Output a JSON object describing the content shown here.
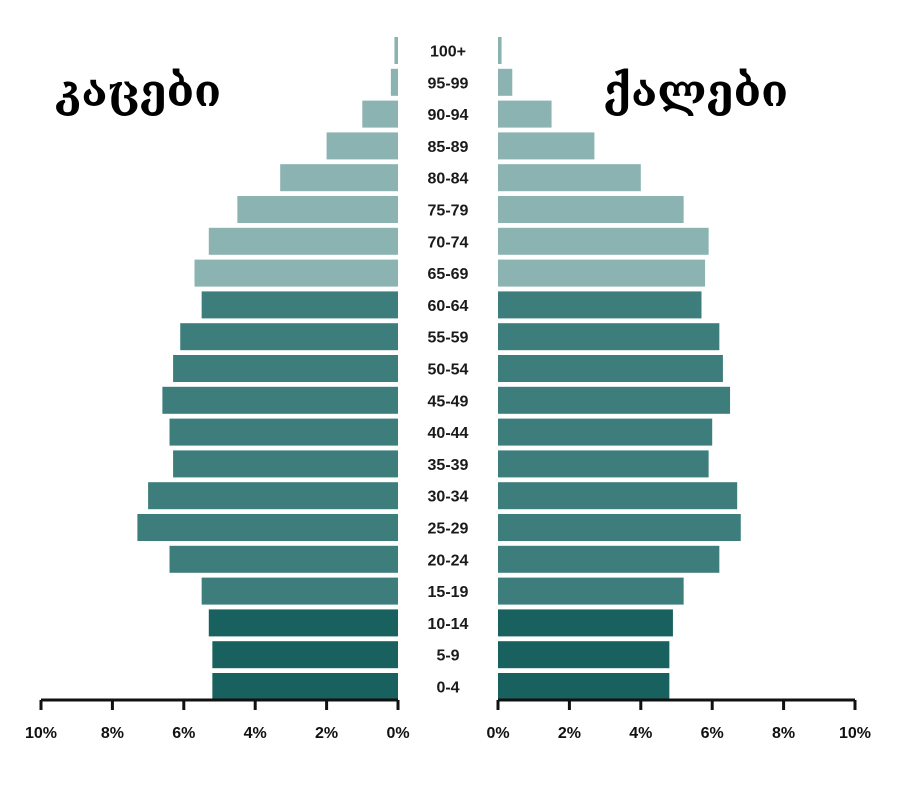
{
  "chart_data": {
    "type": "bar",
    "subtype": "population-pyramid",
    "left_title": "კაცები",
    "right_title": "ქალები",
    "categories": [
      "100+",
      "95-99",
      "90-94",
      "85-89",
      "80-84",
      "75-79",
      "70-74",
      "65-69",
      "60-64",
      "55-59",
      "50-54",
      "45-49",
      "40-44",
      "35-39",
      "30-34",
      "25-29",
      "20-24",
      "15-19",
      "10-14",
      "5-9",
      "0-4"
    ],
    "series": [
      {
        "name": "კაცები",
        "side": "left",
        "values": [
          0.1,
          0.2,
          1.0,
          2.0,
          3.3,
          4.5,
          5.3,
          5.7,
          5.5,
          6.1,
          6.3,
          6.6,
          6.4,
          6.3,
          7.0,
          7.3,
          6.4,
          5.5,
          5.3,
          5.2,
          5.2
        ]
      },
      {
        "name": "ქალები",
        "side": "right",
        "values": [
          0.1,
          0.4,
          1.5,
          2.7,
          4.0,
          5.2,
          5.9,
          5.8,
          5.7,
          6.2,
          6.3,
          6.5,
          6.0,
          5.9,
          6.7,
          6.8,
          6.2,
          5.2,
          4.9,
          4.8,
          4.8
        ]
      }
    ],
    "values_note": "",
    "xlim": [
      0,
      10
    ],
    "x_ticks": [
      "10%",
      "8%",
      "6%",
      "4%",
      "2%",
      "0%"
    ],
    "x_ticks_right": [
      "0%",
      "2%",
      "4%",
      "6%",
      "8%",
      "10%"
    ],
    "colors": {
      "old": "#8ab3b1",
      "middle": "#3d7e7c",
      "young": "#18615f"
    },
    "grid": false,
    "legend": "none"
  }
}
